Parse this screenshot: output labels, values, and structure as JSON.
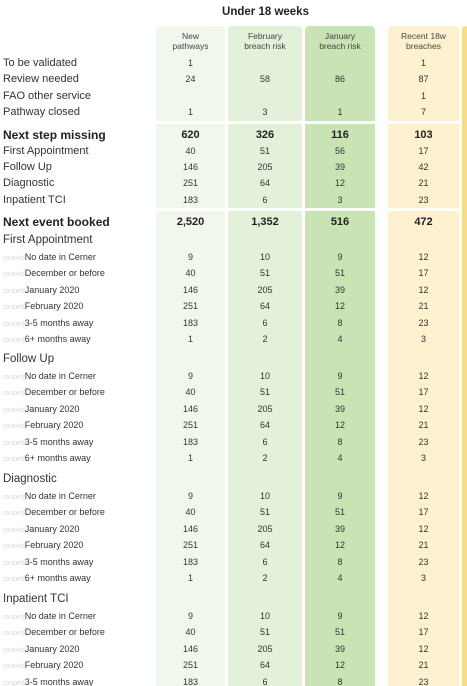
{
  "header": {
    "title": "Under 18 weeks",
    "columns": [
      {
        "key": "new",
        "label_lines": [
          "New",
          "pathways"
        ]
      },
      {
        "key": "feb",
        "label_lines": [
          "February",
          "breach risk"
        ]
      },
      {
        "key": "jan",
        "label_lines": [
          "January",
          "breach risk"
        ]
      },
      {
        "key": "rec",
        "label_lines": [
          "Recent 18w",
          "breaches"
        ]
      }
    ]
  },
  "rows": [
    {
      "label": "To be validated",
      "type": "plain",
      "values": [
        "1",
        "",
        "",
        "1"
      ]
    },
    {
      "label": "Review needed",
      "type": "plain",
      "values": [
        "24",
        "58",
        "86",
        "87"
      ]
    },
    {
      "label": "FAO other service",
      "type": "plain",
      "values": [
        "",
        "",
        "",
        "1"
      ]
    },
    {
      "label": "Pathway closed",
      "type": "plain",
      "values": [
        "1",
        "3",
        "1",
        "7"
      ]
    },
    {
      "label": "Next step missing",
      "type": "sect",
      "values": [
        "620",
        "326",
        "116",
        "103"
      ]
    },
    {
      "label": "First Appointment",
      "type": "plain",
      "values": [
        "40",
        "51",
        "56",
        "17"
      ]
    },
    {
      "label": "Follow Up",
      "type": "plain",
      "values": [
        "146",
        "205",
        "39",
        "42"
      ]
    },
    {
      "label": "Diagnostic",
      "type": "plain",
      "values": [
        "251",
        "64",
        "12",
        "21"
      ]
    },
    {
      "label": "Inpatient TCI",
      "type": "plain",
      "values": [
        "183",
        "6",
        "3",
        "23"
      ]
    },
    {
      "label": "Next event booked",
      "type": "sect",
      "values": [
        "2,520",
        "1,352",
        "516",
        "472"
      ]
    },
    {
      "label": "First Appointment",
      "type": "sub",
      "values": [
        "",
        "",
        "",
        ""
      ]
    },
    {
      "label": "No date in Cerner",
      "prefix": "rouped",
      "type": "item",
      "values": [
        "9",
        "10",
        "9",
        "12"
      ]
    },
    {
      "label": "December or before",
      "prefix": "rouped",
      "type": "item",
      "values": [
        "40",
        "51",
        "51",
        "17"
      ]
    },
    {
      "label": "January 2020",
      "prefix": "rouped",
      "type": "item",
      "values": [
        "146",
        "205",
        "39",
        "12"
      ]
    },
    {
      "label": "February 2020",
      "prefix": "rouped",
      "type": "item",
      "values": [
        "251",
        "64",
        "12",
        "21"
      ]
    },
    {
      "label": "3-5 months away",
      "prefix": "rouped",
      "type": "item",
      "values": [
        "183",
        "6",
        "8",
        "23"
      ]
    },
    {
      "label": "6+ months away",
      "prefix": "rouped",
      "type": "item",
      "values": [
        "1",
        "2",
        "4",
        "3"
      ]
    },
    {
      "label": "Follow Up",
      "type": "sub",
      "values": [
        "",
        "",
        "",
        ""
      ]
    },
    {
      "label": "No date in Cerner",
      "prefix": "rouped",
      "type": "item",
      "values": [
        "9",
        "10",
        "9",
        "12"
      ]
    },
    {
      "label": "December or before",
      "prefix": "rouped",
      "type": "item",
      "values": [
        "40",
        "51",
        "51",
        "17"
      ]
    },
    {
      "label": "January 2020",
      "prefix": "rouped",
      "type": "item",
      "values": [
        "146",
        "205",
        "39",
        "12"
      ]
    },
    {
      "label": "February 2020",
      "prefix": "rouped",
      "type": "item",
      "values": [
        "251",
        "64",
        "12",
        "21"
      ]
    },
    {
      "label": "3-5 months away",
      "prefix": "rouped",
      "type": "item",
      "values": [
        "183",
        "6",
        "8",
        "23"
      ]
    },
    {
      "label": "6+ months away",
      "prefix": "rouped",
      "type": "item",
      "values": [
        "1",
        "2",
        "4",
        "3"
      ]
    },
    {
      "label": "Diagnostic",
      "type": "sub",
      "values": [
        "",
        "",
        "",
        ""
      ]
    },
    {
      "label": "No date in Cerner",
      "prefix": "rouped",
      "type": "item",
      "values": [
        "9",
        "10",
        "9",
        "12"
      ]
    },
    {
      "label": "December or before",
      "prefix": "rouped",
      "type": "item",
      "values": [
        "40",
        "51",
        "51",
        "17"
      ]
    },
    {
      "label": "January 2020",
      "prefix": "rouped",
      "type": "item",
      "values": [
        "146",
        "205",
        "39",
        "12"
      ]
    },
    {
      "label": "February 2020",
      "prefix": "rouped",
      "type": "item",
      "values": [
        "251",
        "64",
        "12",
        "21"
      ]
    },
    {
      "label": "3-5 months away",
      "prefix": "rouped",
      "type": "item",
      "values": [
        "183",
        "6",
        "8",
        "23"
      ]
    },
    {
      "label": "6+ months away",
      "prefix": "rouped",
      "type": "item",
      "values": [
        "1",
        "2",
        "4",
        "3"
      ]
    },
    {
      "label": "Inpatient TCI",
      "type": "sub",
      "values": [
        "",
        "",
        "",
        ""
      ]
    },
    {
      "label": "No date in Cerner",
      "prefix": "rouped",
      "type": "item",
      "values": [
        "9",
        "10",
        "9",
        "12"
      ]
    },
    {
      "label": "December or before",
      "prefix": "rouped",
      "type": "item",
      "values": [
        "40",
        "51",
        "51",
        "17"
      ]
    },
    {
      "label": "January 2020",
      "prefix": "rouped",
      "type": "item",
      "values": [
        "146",
        "205",
        "39",
        "12"
      ]
    },
    {
      "label": "February 2020",
      "prefix": "rouped",
      "type": "item",
      "values": [
        "251",
        "64",
        "12",
        "21"
      ]
    },
    {
      "label": "3-5 months away",
      "prefix": "rouped",
      "type": "item",
      "values": [
        "183",
        "6",
        "8",
        "23"
      ]
    }
  ]
}
